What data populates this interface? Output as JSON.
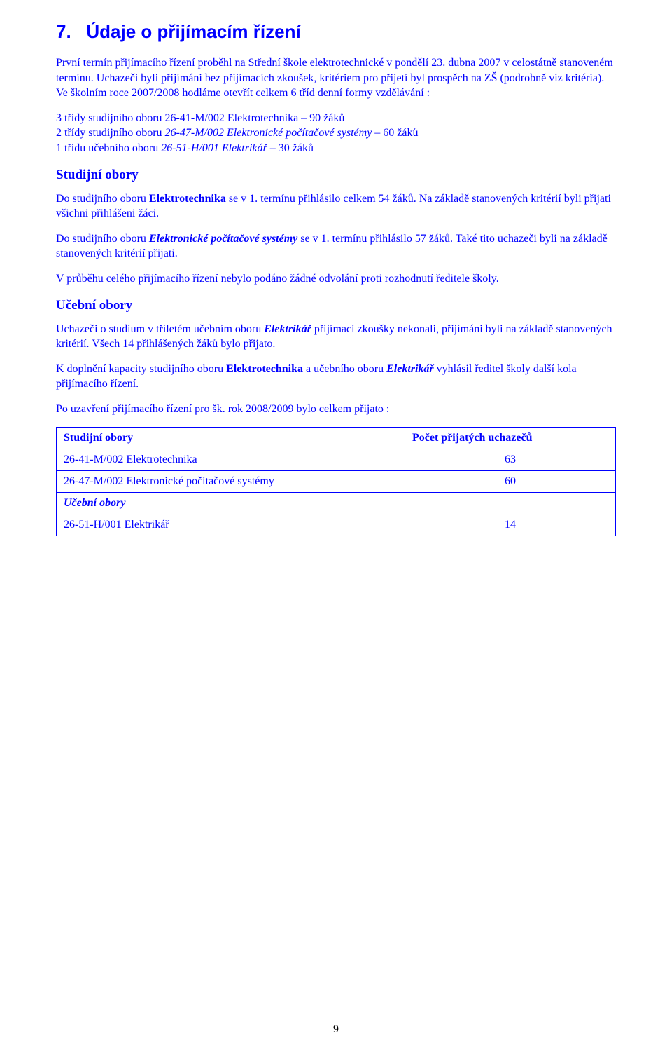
{
  "section_number": "7.",
  "section_title": "Údaje o přijímacím řízení",
  "p1_a": "První termín přijímacího řízení proběhl na Střední škole elektrotechnické v pondělí 23. dubna 2007 v celostátně stanoveném termínu. ",
  "p1_b": "Uchazeči byli přijímáni bez přijímacích zkoušek, kritériem pro přijetí byl prospěch na ZŠ (podrobně viz kritéria). Ve školním roce 2007/2008 hodláme otevřít celkem 6 tříd denní formy vzdělávání :",
  "list1": "3 třídy studijního oboru 26-41-M/002 Elektrotechnika – 90 žáků",
  "list2_a": "2 třídy studijního oboru ",
  "list2_b": "26-47-M/002 Elektronické počítačové systémy",
  "list2_c": " – 60 žáků",
  "list3_a": "1 třídu učebního oboru ",
  "list3_b": "26-51-H/001 Elektrikář",
  "list3_c": " – 30 žáků",
  "studijni_header": "Studijní obory",
  "p2_a": "Do studijního oboru ",
  "p2_b": "Elektrotechnika",
  "p2_c": " se v 1. termínu přihlásilo celkem 54 žáků. Na základě stanovených kritérií byli přijati všichni přihlášeni žáci.",
  "p3_a": "Do studijního oboru ",
  "p3_b": "Elektronické počítačové systémy",
  "p3_c": " se v 1. termínu přihlásilo 57 žáků. Také tito uchazeči byli na základě stanovených kritérií přijati.",
  "p4": "V průběhu celého přijímacího řízení nebylo podáno žádné odvolání proti rozhodnutí ředitele školy.",
  "ucebni_header": "Učební obory",
  "p5_a": "Uchazeči o studium v tříletém učebním oboru ",
  "p5_b": "Elektrikář",
  "p5_c": " přijímací zkoušky nekonali, přijímáni byli na základě stanovených kritérií. Všech 14 přihlášených žáků bylo přijato.",
  "p6_a": "K doplnění kapacity studijního oboru ",
  "p6_b": "Elektrotechnika",
  "p6_c": " a učebního oboru ",
  "p6_d": "Elektrikář",
  "p6_e": "  vyhlásil ředitel školy další kola přijímacího řízení.",
  "p7": "Po uzavření přijímacího řízení pro šk. rok 2008/2009 bylo celkem přijato :",
  "table": {
    "header_left": "Studijní obory",
    "header_right": "Počet přijatých uchazečů",
    "rows": [
      {
        "label": "26-41-M/002 Elektrotechnika",
        "value": "63"
      },
      {
        "label": "26-47-M/002 Elektronické počítačové systémy",
        "value": "60"
      }
    ],
    "ucebni_label": "Učební obory",
    "ucebni_row": {
      "label": "26-51-H/001 Elektrikář",
      "value": "14"
    }
  },
  "page_number": "9"
}
